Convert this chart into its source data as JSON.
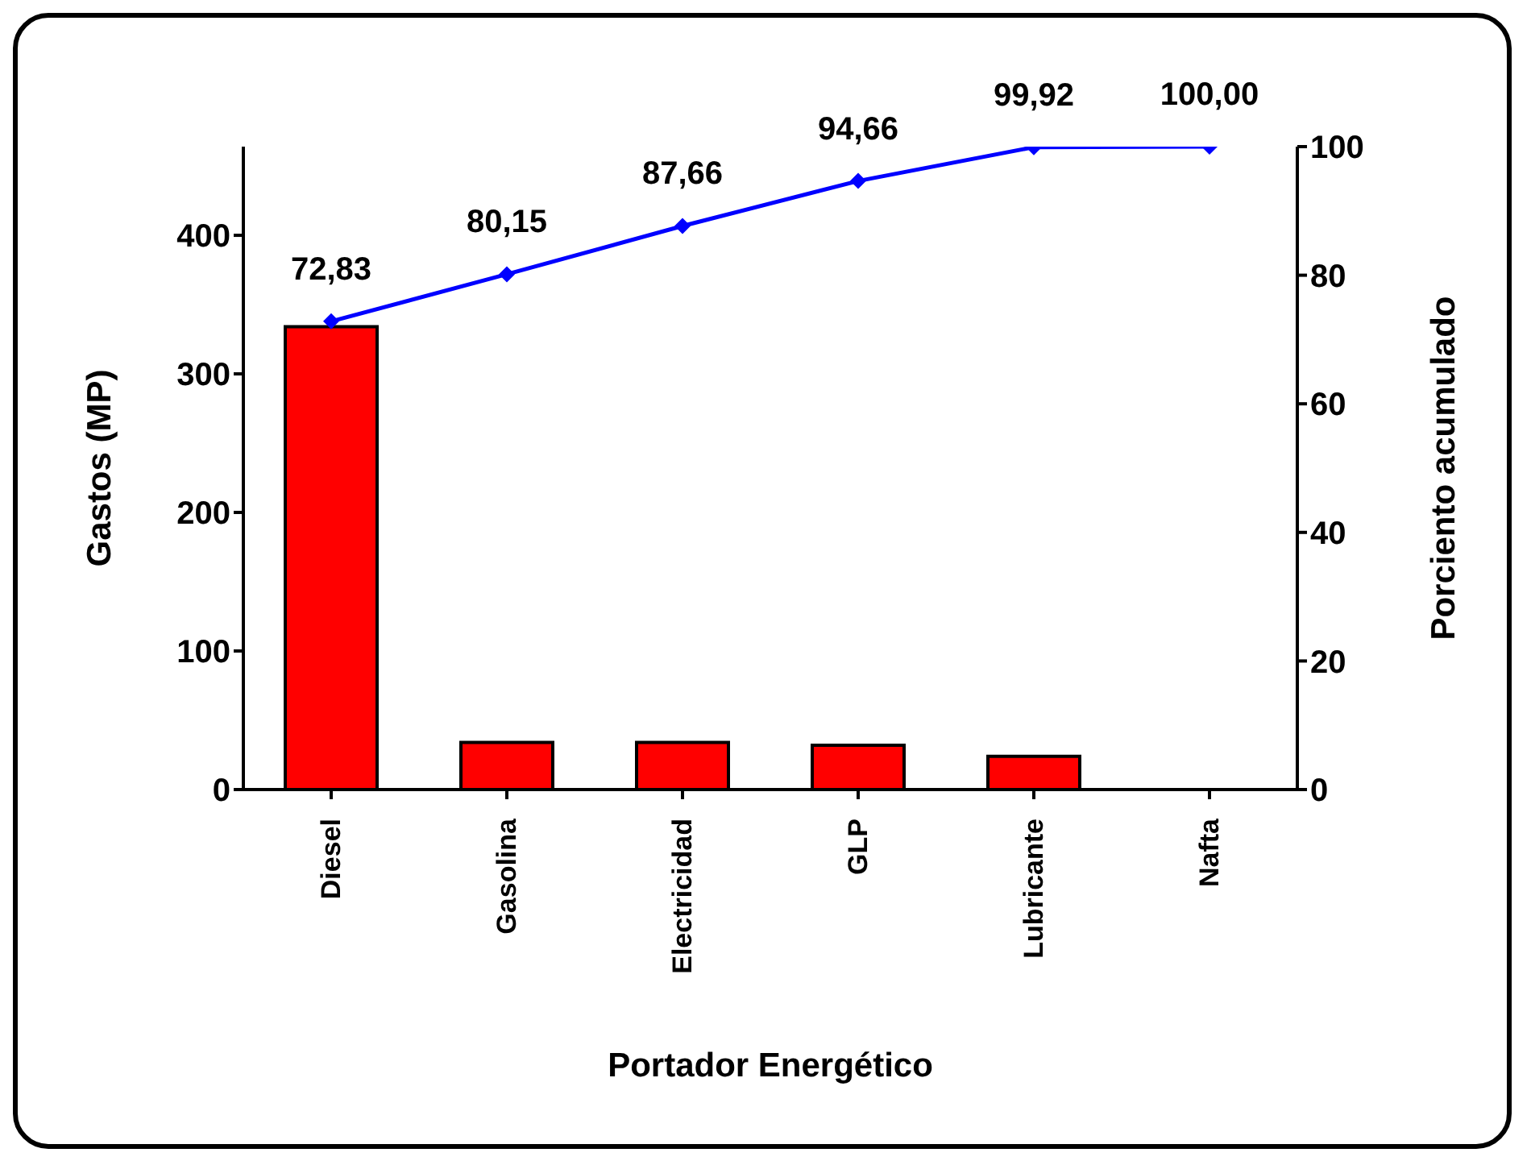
{
  "chart_data": {
    "type": "bar",
    "xlabel": "Portador Energético",
    "ylabel": "Gastos (MP)",
    "y2label": "Porciento acumulado",
    "categories": [
      "Diesel",
      "Gasolina",
      "Electricidad",
      "GLP",
      "Lubricante",
      "Nafta"
    ],
    "series": [
      {
        "color": "#ff0000",
        "values": [
          334,
          34,
          34,
          32,
          24,
          0
        ]
      },
      {
        "type": "line",
        "axis": "y2",
        "color": "#0000ff",
        "marker": "diamond",
        "values": [
          72.83,
          80.15,
          87.66,
          94.66,
          99.92,
          100.0
        ],
        "value_labels": [
          "72,83",
          "80,15",
          "87,66",
          "94,66",
          "99,92",
          "100,00"
        ]
      }
    ],
    "ylim": [
      0,
      464
    ],
    "yticks": [
      0,
      100,
      200,
      300,
      400
    ],
    "y2lim": [
      0,
      100
    ],
    "y2ticks": [
      0,
      20,
      40,
      60,
      80,
      100
    ],
    "grid": false,
    "legend": false
  }
}
